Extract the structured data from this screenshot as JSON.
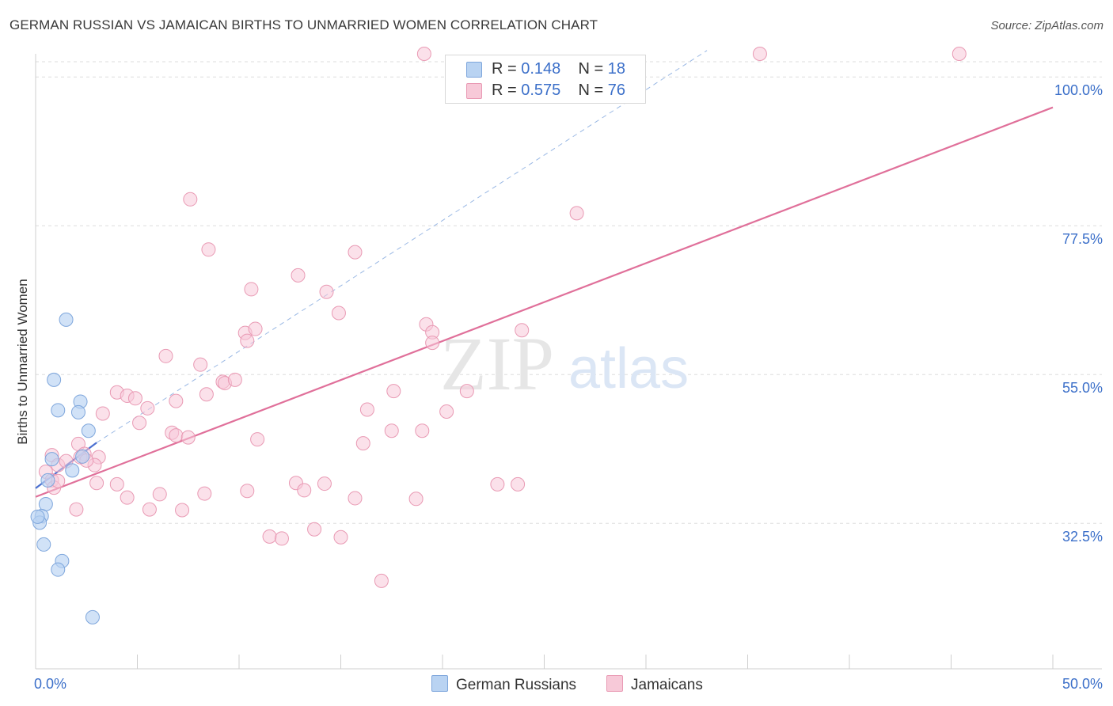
{
  "title": "GERMAN RUSSIAN VS JAMAICAN BIRTHS TO UNMARRIED WOMEN CORRELATION CHART",
  "source": "Source: ZipAtlas.com",
  "legend_box": {
    "rows": [
      {
        "r_label": "R =",
        "r_value": "0.148",
        "n_label": "N =",
        "n_value": "18"
      },
      {
        "r_label": "R =",
        "r_value": "0.575",
        "n_label": "N =",
        "n_value": "76"
      }
    ]
  },
  "bottom_legend": [
    "German Russians",
    "Jamaicans"
  ],
  "colors": {
    "blue_fill": "#b9d3f2",
    "blue_stroke": "#7ea6dc",
    "blue_line": "#4a6fd0",
    "pink_fill": "#f7c9d8",
    "pink_stroke": "#e99ab4",
    "pink_line": "#e0709a",
    "axis_label": "#3b6fc9",
    "grid": "#dddddd"
  },
  "chart_data": {
    "type": "scatter",
    "title": "GERMAN RUSSIAN VS JAMAICAN BIRTHS TO UNMARRIED WOMEN CORRELATION CHART",
    "xlabel": "",
    "ylabel": "Births to Unmarried Women",
    "xlim": [
      0,
      50
    ],
    "ylim": [
      10.5,
      103.5
    ],
    "x_tick_labels": [
      {
        "value": 0,
        "label": "0.0%"
      },
      {
        "value": 50,
        "label": "50.0%"
      }
    ],
    "x_minor_ticks": [
      0,
      5,
      10,
      15,
      20,
      25,
      30,
      35,
      40,
      45,
      50
    ],
    "y_ticks": [
      {
        "value": 32.5,
        "label": "32.5%"
      },
      {
        "value": 55.0,
        "label": "55.0%"
      },
      {
        "value": 77.5,
        "label": "77.5%"
      },
      {
        "value": 100.0,
        "label": "100.0%"
      }
    ],
    "watermark": {
      "zip": "ZIP",
      "atlas": "atlas"
    },
    "series": [
      {
        "name": "German Russians",
        "R": 0.148,
        "N": 18,
        "points": [
          [
            1.5,
            63.3
          ],
          [
            0.9,
            54.2
          ],
          [
            2.2,
            50.9
          ],
          [
            1.1,
            49.6
          ],
          [
            2.1,
            49.3
          ],
          [
            2.6,
            46.5
          ],
          [
            0.8,
            42.2
          ],
          [
            1.8,
            40.5
          ],
          [
            2.3,
            42.6
          ],
          [
            0.5,
            35.4
          ],
          [
            0.3,
            33.6
          ],
          [
            0.2,
            32.6
          ],
          [
            0.4,
            29.3
          ],
          [
            1.3,
            26.8
          ],
          [
            1.1,
            25.5
          ],
          [
            2.8,
            18.3
          ],
          [
            0.1,
            33.5
          ],
          [
            0.6,
            39.0
          ]
        ],
        "trend_solid": {
          "x": [
            0.0,
            3.0
          ],
          "y": [
            37.8,
            44.7
          ]
        },
        "trend_dashed": {
          "x": [
            3.0,
            33.0
          ],
          "y": [
            44.7,
            104.0
          ]
        }
      },
      {
        "name": "Jamaicans",
        "R": 0.575,
        "N": 76,
        "points": [
          [
            19.1,
            103.5
          ],
          [
            35.6,
            103.5
          ],
          [
            45.4,
            103.5
          ],
          [
            7.6,
            81.5
          ],
          [
            8.5,
            73.9
          ],
          [
            15.7,
            73.5
          ],
          [
            26.6,
            79.4
          ],
          [
            10.6,
            67.9
          ],
          [
            12.9,
            70.0
          ],
          [
            14.3,
            67.5
          ],
          [
            14.9,
            64.3
          ],
          [
            10.3,
            61.3
          ],
          [
            10.8,
            61.9
          ],
          [
            10.4,
            60.1
          ],
          [
            6.4,
            57.8
          ],
          [
            19.2,
            62.6
          ],
          [
            19.5,
            61.4
          ],
          [
            19.5,
            59.8
          ],
          [
            23.9,
            61.7
          ],
          [
            8.1,
            56.5
          ],
          [
            9.2,
            53.9
          ],
          [
            9.3,
            53.7
          ],
          [
            9.8,
            54.2
          ],
          [
            4.0,
            52.3
          ],
          [
            4.5,
            51.8
          ],
          [
            4.9,
            51.4
          ],
          [
            6.9,
            51.0
          ],
          [
            8.4,
            52.0
          ],
          [
            17.6,
            52.5
          ],
          [
            21.2,
            52.5
          ],
          [
            16.3,
            49.7
          ],
          [
            5.5,
            49.9
          ],
          [
            3.3,
            49.1
          ],
          [
            5.1,
            47.7
          ],
          [
            20.2,
            49.4
          ],
          [
            17.5,
            46.5
          ],
          [
            19.0,
            46.5
          ],
          [
            6.7,
            46.2
          ],
          [
            6.9,
            45.8
          ],
          [
            7.5,
            45.5
          ],
          [
            10.9,
            45.2
          ],
          [
            2.1,
            44.5
          ],
          [
            16.1,
            44.6
          ],
          [
            3.1,
            42.5
          ],
          [
            2.4,
            43.0
          ],
          [
            2.2,
            42.5
          ],
          [
            0.8,
            42.8
          ],
          [
            1.1,
            41.3
          ],
          [
            1.5,
            41.9
          ],
          [
            2.9,
            41.3
          ],
          [
            2.5,
            42.0
          ],
          [
            0.5,
            40.3
          ],
          [
            3.0,
            38.6
          ],
          [
            0.8,
            39.0
          ],
          [
            0.9,
            37.9
          ],
          [
            1.1,
            38.9
          ],
          [
            12.8,
            38.6
          ],
          [
            4.0,
            38.4
          ],
          [
            4.5,
            36.4
          ],
          [
            6.1,
            36.9
          ],
          [
            10.4,
            37.4
          ],
          [
            13.2,
            37.5
          ],
          [
            14.2,
            38.5
          ],
          [
            15.7,
            36.3
          ],
          [
            18.7,
            36.2
          ],
          [
            22.7,
            38.4
          ],
          [
            23.7,
            38.4
          ],
          [
            2.0,
            34.6
          ],
          [
            5.6,
            34.6
          ],
          [
            7.2,
            34.5
          ],
          [
            8.3,
            37.0
          ],
          [
            11.5,
            30.5
          ],
          [
            13.7,
            31.6
          ],
          [
            12.1,
            30.2
          ],
          [
            15.0,
            30.4
          ],
          [
            17.0,
            23.8
          ]
        ],
        "trend": {
          "x": [
            0.0,
            50.0
          ],
          "y": [
            36.5,
            95.4
          ]
        }
      }
    ]
  }
}
